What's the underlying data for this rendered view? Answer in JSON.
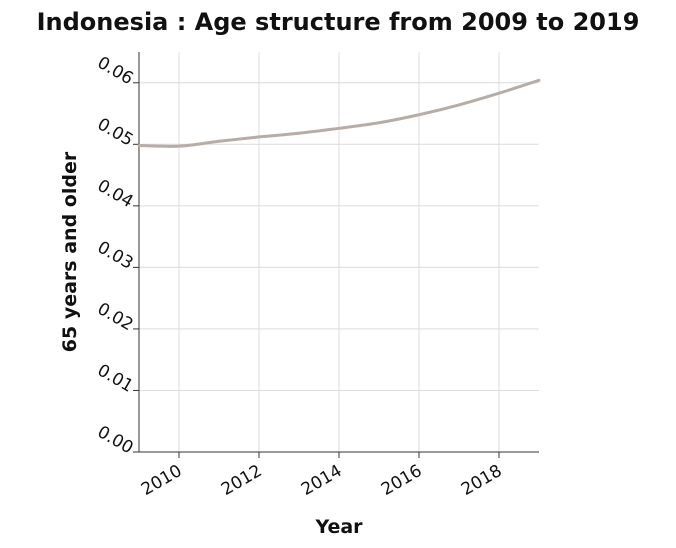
{
  "chart_data": {
    "type": "line",
    "title": "Indonesia : Age structure from 2009 to 2019",
    "xlabel": "Year",
    "ylabel": "65 years and older",
    "xlim": [
      2009,
      2019
    ],
    "ylim": [
      0,
      0.065
    ],
    "x_ticks": [
      2010,
      2012,
      2014,
      2016,
      2018
    ],
    "x_tick_labels": [
      "2010",
      "2012",
      "2014",
      "2016",
      "2018"
    ],
    "y_ticks": [
      0,
      0.01,
      0.02,
      0.03,
      0.04,
      0.05,
      0.06
    ],
    "y_tick_labels": [
      "0.00",
      "0.01",
      "0.02",
      "0.03",
      "0.04",
      "0.05",
      "0.06"
    ],
    "grid": true,
    "series": [
      {
        "x": [
          2009,
          2010,
          2011,
          2012,
          2013,
          2014,
          2015,
          2016,
          2017,
          2018,
          2019
        ],
        "values": [
          0.0498,
          0.0497,
          0.0505,
          0.0512,
          0.0518,
          0.0526,
          0.0535,
          0.0548,
          0.0564,
          0.0583,
          0.0604
        ],
        "color": "#b8aca7"
      }
    ]
  }
}
